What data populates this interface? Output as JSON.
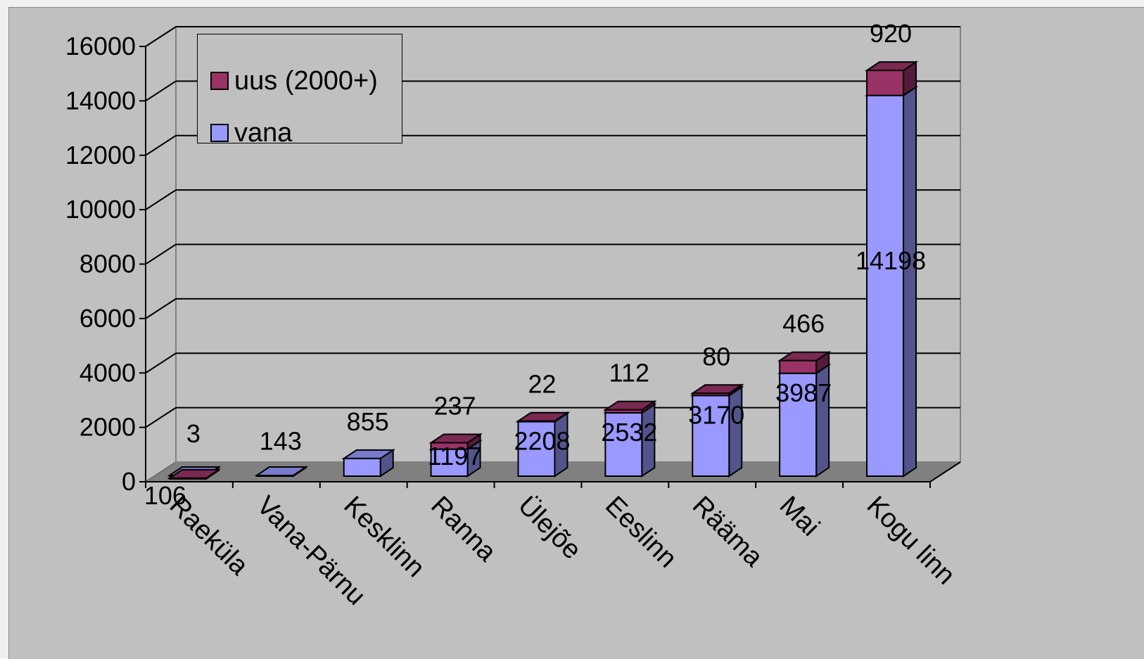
{
  "chart_data": {
    "type": "bar",
    "stacked": true,
    "three_d": true,
    "categories": [
      "Raeküla",
      "Vana-Pärnu",
      "Kesklinn",
      "Ranna",
      "Ülejõe",
      "Eeslinn",
      "Rääma",
      "Mai",
      "Kogu linn"
    ],
    "series": [
      {
        "name": "vana",
        "color": "#9999ff",
        "values": [
          106,
          143,
          855,
          1197,
          2208,
          2532,
          3170,
          3987,
          14198
        ],
        "labels": [
          "106",
          "143",
          "855",
          "1197",
          "2208",
          "2532",
          "3170",
          "3987",
          "14198"
        ]
      },
      {
        "name": "uus (2000+)",
        "color": "#993366",
        "values": [
          3,
          0,
          0,
          237,
          22,
          112,
          80,
          466,
          920
        ],
        "labels": [
          "3",
          "",
          "",
          "237",
          "22",
          "112",
          "80",
          "466",
          "920"
        ]
      }
    ],
    "ylim": [
      0,
      16000
    ],
    "yticks": [
      "0",
      "2000",
      "4000",
      "6000",
      "8000",
      "10000",
      "12000",
      "14000",
      "16000"
    ],
    "grid": true,
    "legend_position": "top-left",
    "colors": {
      "plot_background": "#c0c0c0",
      "floor": "#808080",
      "gridline": "#000000"
    }
  }
}
